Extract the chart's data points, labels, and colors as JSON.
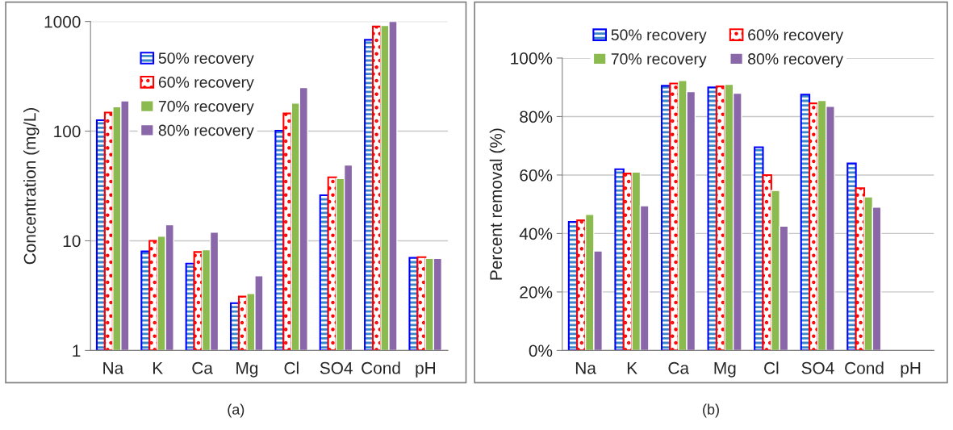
{
  "chart_data": [
    {
      "type": "bar",
      "ylabel": "Concentration (mg/L)",
      "categories": [
        "Na",
        "K",
        "Ca",
        "Mg",
        "Cl",
        "SO4",
        "Cond",
        "pH"
      ],
      "log": true,
      "ylim": [
        1,
        1000
      ],
      "yticks": [
        1,
        10,
        100,
        1000
      ],
      "grid": "y",
      "legend": "top left",
      "annotations": [
        "(a)"
      ],
      "series": [
        {
          "name": "50% recovery",
          "color": "#0000ff",
          "values": [
            126,
            8,
            6.2,
            2.7,
            101,
            26,
            680,
            7.0
          ]
        },
        {
          "name": "60% recovery",
          "color": "#ff0000",
          "values": [
            148,
            10,
            7.9,
            3.1,
            145,
            38,
            900,
            7.1
          ]
        },
        {
          "name": "70% recovery",
          "color": "#8bbb4f",
          "values": [
            167,
            11,
            8.3,
            3.3,
            180,
            37,
            920,
            6.9
          ]
        },
        {
          "name": "80% recovery",
          "color": "#8a67a8",
          "values": [
            189,
            14,
            12,
            4.8,
            250,
            49,
            1000,
            6.9
          ]
        }
      ]
    },
    {
      "type": "bar",
      "ylabel": "Percent removal (%)",
      "categories": [
        "Na",
        "K",
        "Ca",
        "Mg",
        "Cl",
        "SO4",
        "Cond",
        "pH"
      ],
      "ylim": [
        0,
        100
      ],
      "yticks": [
        {
          "value": 0,
          "label": "0%"
        },
        {
          "value": 20,
          "label": "20%"
        },
        {
          "value": 40,
          "label": "40%"
        },
        {
          "value": 60,
          "label": "60%"
        },
        {
          "value": 80,
          "label": "80%"
        },
        {
          "value": 100,
          "label": "100%"
        }
      ],
      "grid": "y",
      "legend": "top",
      "annotations": [
        "(b)"
      ],
      "series": [
        {
          "name": "50% recovery",
          "color": "#0000ff",
          "values": [
            44,
            62,
            90.5,
            90,
            69.5,
            87.5,
            64,
            null
          ]
        },
        {
          "name": "60% recovery",
          "color": "#ff0000",
          "values": [
            44.5,
            60.5,
            91.3,
            90.3,
            60,
            84.5,
            55.5,
            null
          ]
        },
        {
          "name": "70% recovery",
          "color": "#8bbb4f",
          "values": [
            46.5,
            61,
            92.3,
            91,
            54.7,
            85.5,
            52.5,
            null
          ]
        },
        {
          "name": "80% recovery",
          "color": "#8a67a8",
          "values": [
            34,
            49.5,
            88.5,
            88,
            42.5,
            83.5,
            49,
            null
          ]
        }
      ]
    }
  ]
}
